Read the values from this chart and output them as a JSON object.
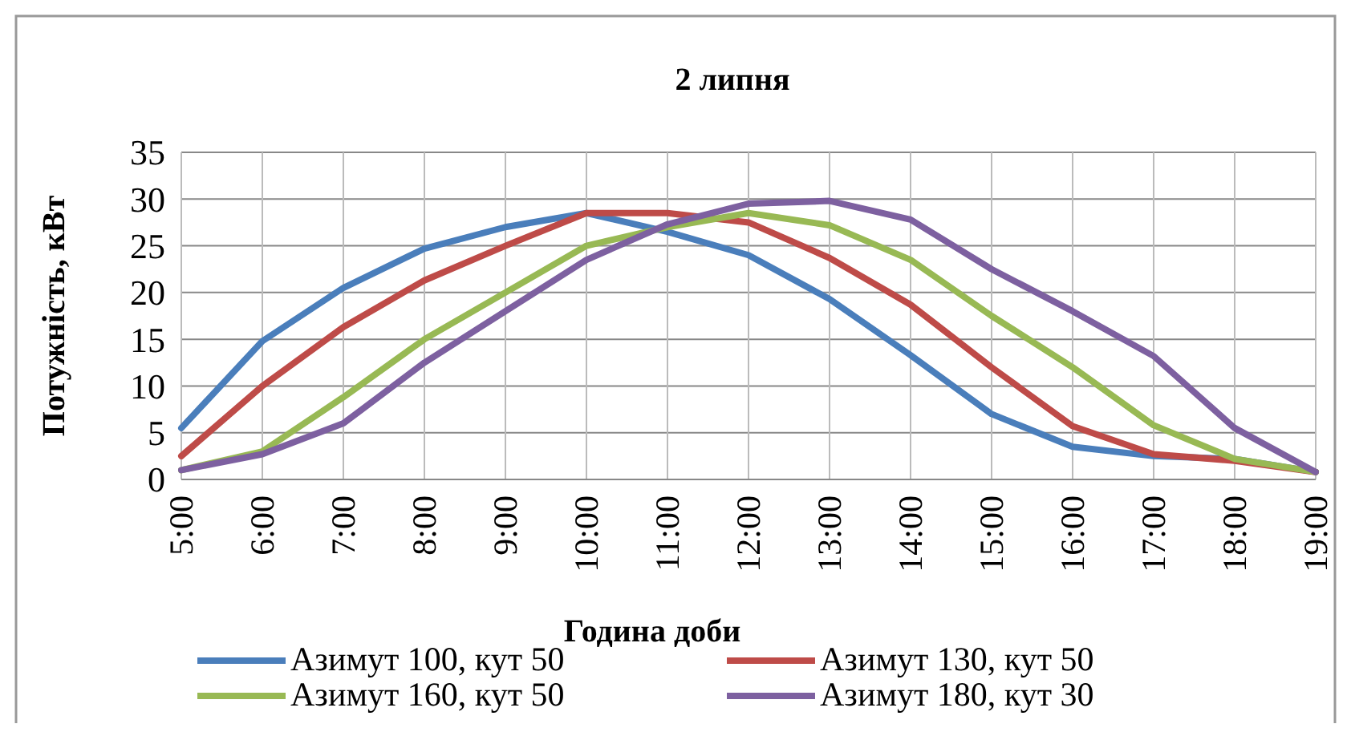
{
  "chart_data": {
    "type": "line",
    "title": "2 липня",
    "xlabel": "Година доби",
    "ylabel": "Потужність, кВт",
    "categories": [
      "5:00",
      "6:00",
      "7:00",
      "8:00",
      "9:00",
      "10:00",
      "11:00",
      "12:00",
      "13:00",
      "14:00",
      "15:00",
      "16:00",
      "17:00",
      "18:00",
      "19:00"
    ],
    "series": [
      {
        "name": "Азимут 100, кут 50",
        "color": "#4a7ebb",
        "values": [
          5.5,
          14.8,
          20.5,
          24.7,
          27,
          28.5,
          26.5,
          24,
          19.3,
          13.3,
          7,
          3.5,
          2.5,
          2.2,
          0.8
        ]
      },
      {
        "name": "Азимут 130, кут 50",
        "color": "#be4b48",
        "values": [
          2.5,
          10,
          16.3,
          21.3,
          25,
          28.5,
          28.5,
          27.5,
          23.7,
          18.7,
          12,
          5.7,
          2.7,
          2,
          0.8
        ]
      },
      {
        "name": "Азимут 160, кут 50",
        "color": "#98b954",
        "values": [
          1,
          3,
          8.8,
          15,
          20,
          25,
          27,
          28.5,
          27.2,
          23.5,
          17.5,
          12,
          5.8,
          2.2,
          0.8
        ]
      },
      {
        "name": "Азимут 180, кут 30",
        "color": "#7d60a0",
        "values": [
          1,
          2.7,
          6,
          12.5,
          18,
          23.5,
          27.3,
          29.5,
          29.8,
          27.8,
          22.5,
          18,
          13.2,
          5.5,
          0.8
        ]
      }
    ],
    "ylim": [
      0,
      35
    ],
    "yticks": [
      0,
      5,
      10,
      15,
      20,
      25,
      30,
      35
    ],
    "grid": true,
    "legend": "bottom",
    "marker": "none",
    "line_style": "solid"
  }
}
